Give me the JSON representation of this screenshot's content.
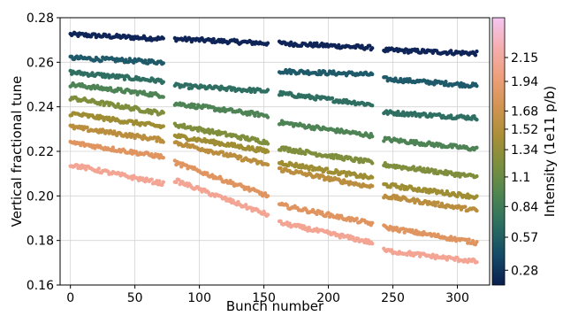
{
  "chart_data": {
    "type": "scatter",
    "title": "",
    "xlabel": "Bunch number",
    "ylabel": "Vertical fractional tune",
    "xlim": [
      -8,
      325
    ],
    "ylim": [
      0.16,
      0.28
    ],
    "xticks": [
      0,
      50,
      100,
      150,
      200,
      250,
      300
    ],
    "yticks": [
      0.16,
      0.18,
      0.2,
      0.22,
      0.24,
      0.26,
      0.28
    ],
    "ytick_labels": [
      "0.16",
      "0.18",
      "0.20",
      "0.22",
      "0.24",
      "0.26",
      "0.28"
    ],
    "grid": true,
    "bunch_groups": [
      [
        0,
        72
      ],
      [
        81,
        153
      ],
      [
        162,
        234
      ],
      [
        243,
        315
      ]
    ],
    "colorbar": {
      "label": "Intensity (1e11 p/b)",
      "ticks": [
        "0.28",
        "0.57",
        "0.84",
        "1.1",
        "1.34",
        "1.52",
        "1.68",
        "1.94",
        "2.15"
      ],
      "tick_values": [
        0.28,
        0.57,
        0.84,
        1.1,
        1.34,
        1.52,
        1.68,
        1.94,
        2.15
      ],
      "range": [
        0.15,
        2.5
      ],
      "colormap": [
        "#0a1f4e",
        "#144a67",
        "#2a6e60",
        "#4c8552",
        "#7a8f3e",
        "#a98f38",
        "#d29451",
        "#ee9f7b",
        "#f5aeb0",
        "#f4c6f0"
      ]
    },
    "series": [
      {
        "intensity": 0.28,
        "color": "#0f2558",
        "levels": [
          [
            0.2725,
            0.2705
          ],
          [
            0.2705,
            0.2685
          ],
          [
            0.2685,
            0.2665
          ],
          [
            0.2655,
            0.264
          ]
        ]
      },
      {
        "intensity": 0.57,
        "color": "#1f5a6a",
        "levels": [
          [
            0.262,
            0.26
          ],
          [
            null,
            null
          ],
          [
            0.256,
            0.2545
          ],
          [
            0.2525,
            0.2495
          ]
        ]
      },
      {
        "intensity": 0.84,
        "color": "#2f6f62",
        "levels": [
          [
            0.2555,
            0.2515
          ],
          [
            0.2495,
            0.247
          ],
          [
            0.246,
            0.241
          ],
          [
            0.2375,
            0.235
          ]
        ]
      },
      {
        "intensity": 1.1,
        "color": "#4e8455",
        "levels": [
          [
            0.25,
            0.245
          ],
          [
            0.2415,
            0.236
          ],
          [
            0.233,
            0.227
          ],
          [
            0.2255,
            0.221
          ]
        ]
      },
      {
        "intensity": 1.34,
        "color": "#7f8e3c",
        "levels": [
          [
            0.244,
            0.237
          ],
          [
            0.232,
            0.224
          ],
          [
            0.2215,
            0.215
          ],
          [
            0.214,
            0.2085
          ]
        ]
      },
      {
        "intensity": 1.52,
        "color": "#9f8d33",
        "levels": [
          [
            0.237,
            0.231
          ],
          [
            0.227,
            0.22
          ],
          [
            0.215,
            0.208
          ],
          [
            0.205,
            0.1995
          ]
        ]
      },
      {
        "intensity": 1.68,
        "color": "#bb8e3f",
        "levels": [
          [
            0.231,
            0.225
          ],
          [
            0.224,
            0.214
          ],
          [
            0.212,
            0.204
          ],
          [
            0.2,
            0.1935
          ]
        ]
      },
      {
        "intensity": 1.94,
        "color": "#e09561",
        "levels": [
          [
            0.224,
            0.2175
          ],
          [
            0.215,
            0.2
          ],
          [
            0.196,
            0.1875
          ],
          [
            0.186,
            0.179
          ]
        ]
      },
      {
        "intensity": 2.15,
        "color": "#f3a493",
        "levels": [
          [
            0.214,
            0.2055
          ],
          [
            0.207,
            0.1915
          ],
          [
            0.188,
            0.179
          ],
          [
            0.1755,
            0.1705
          ]
        ]
      }
    ]
  }
}
